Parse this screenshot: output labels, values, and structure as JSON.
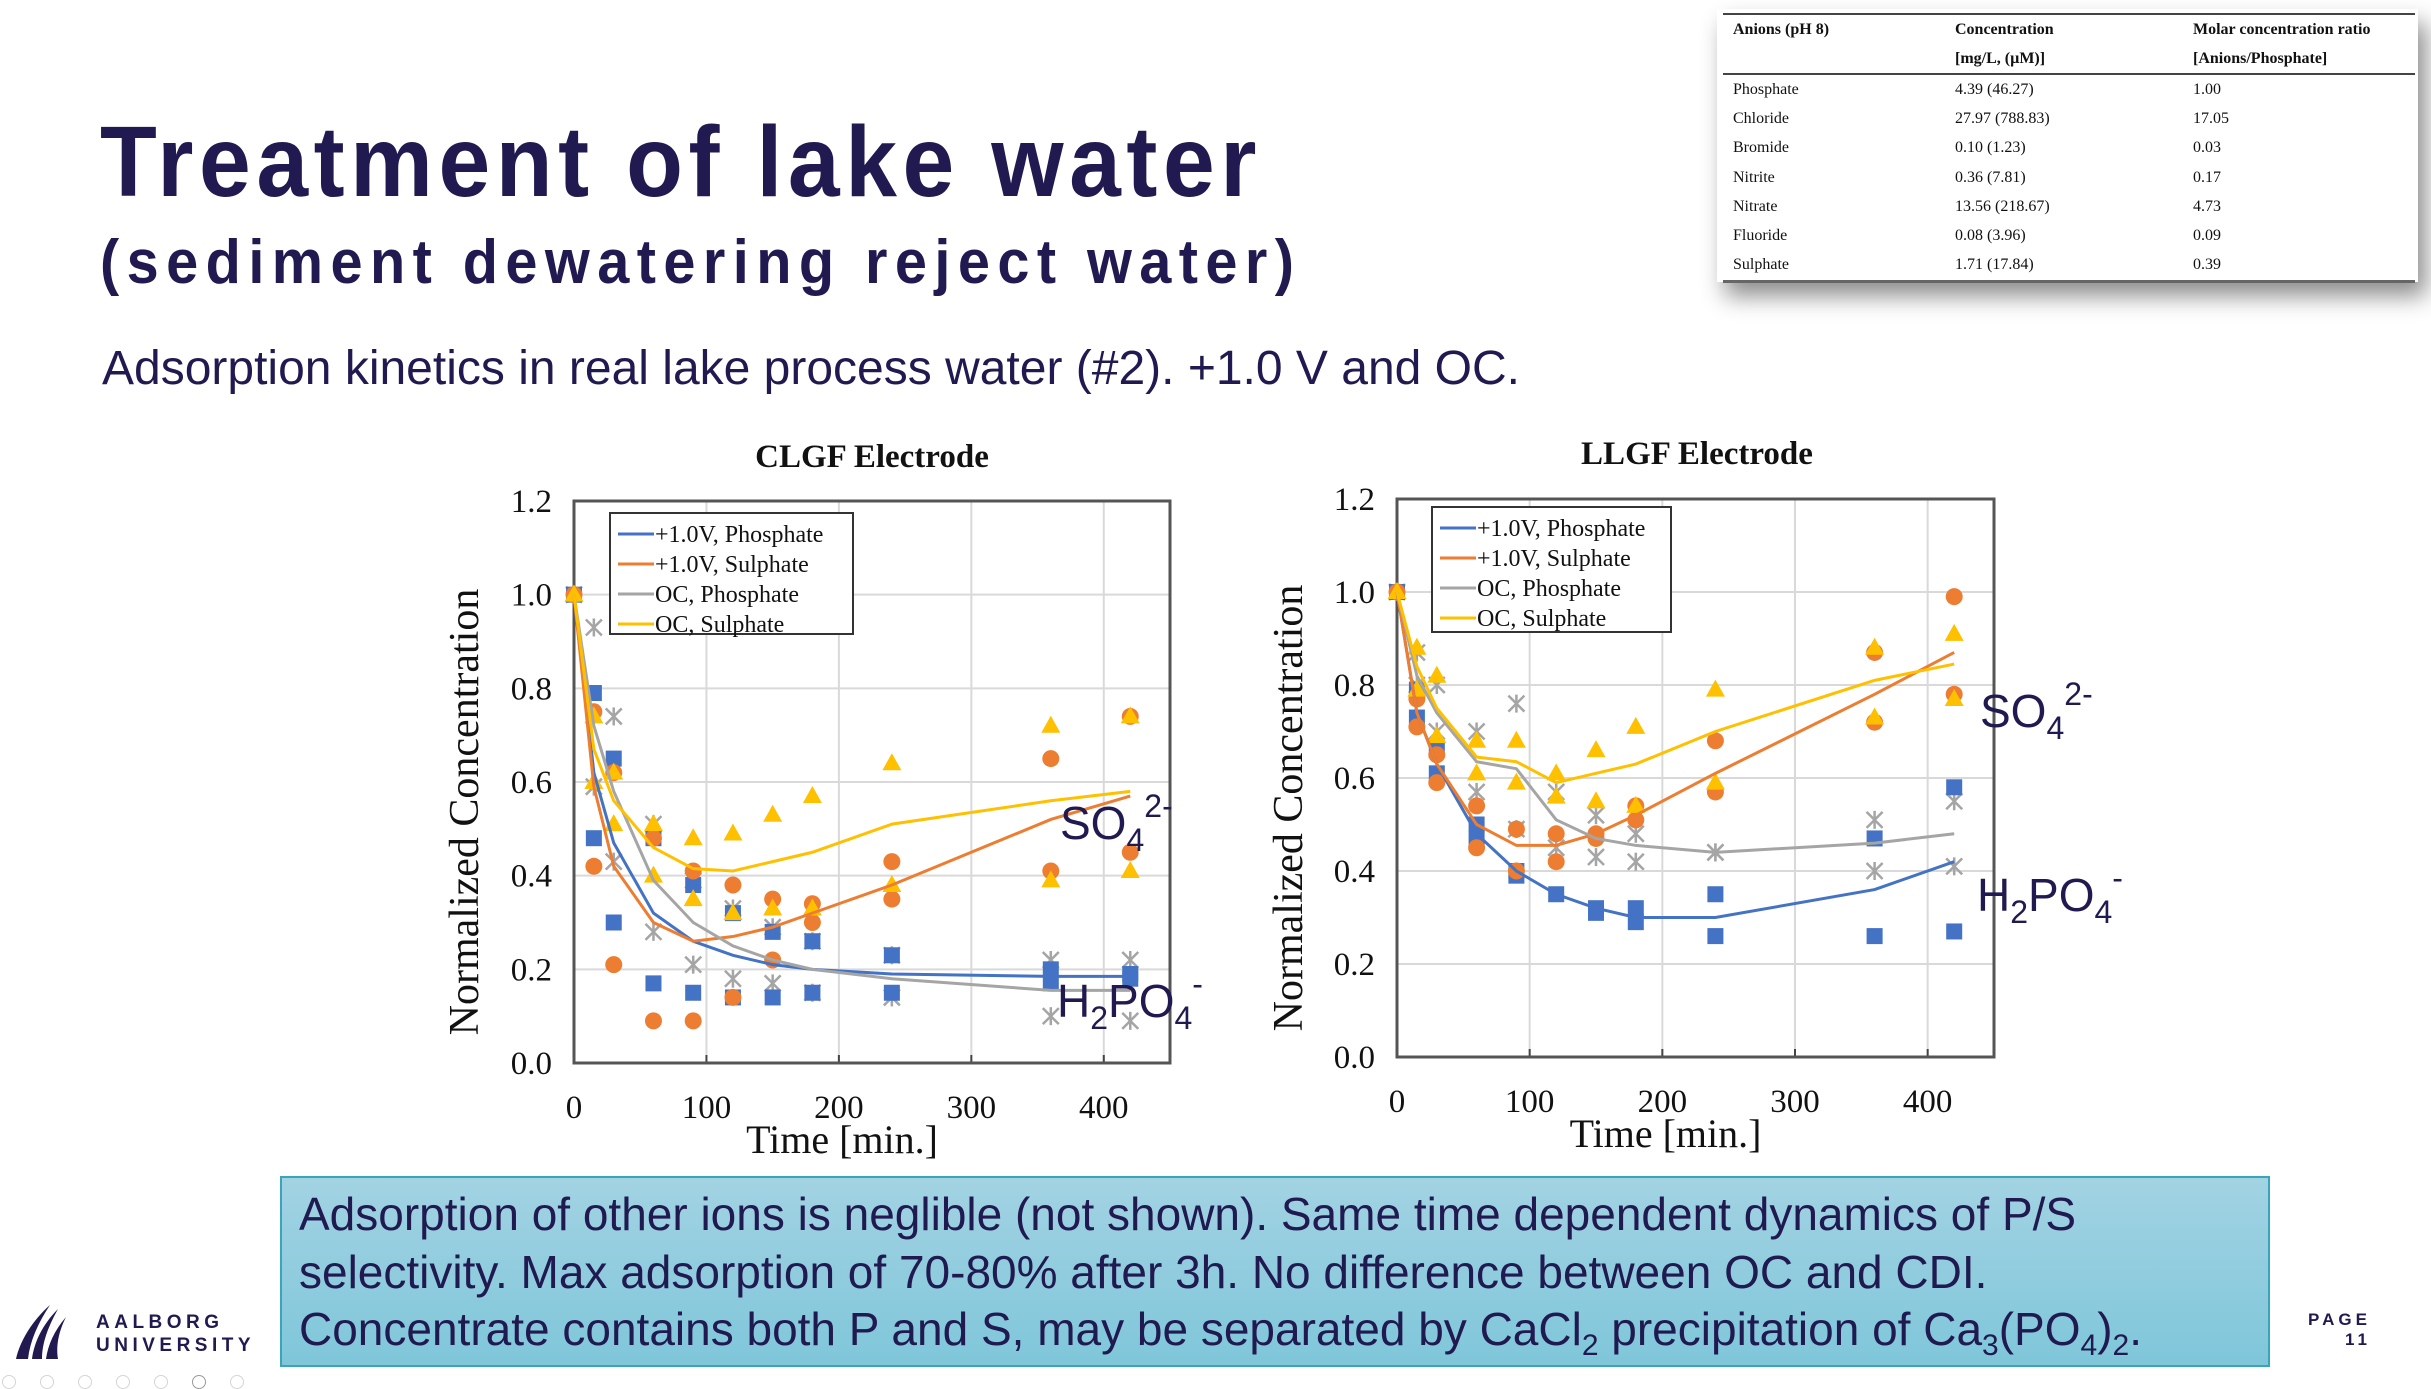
{
  "slide": {
    "title": "Treatment of lake water",
    "subtitle": "(sediment dewatering reject water)",
    "lead": "Adsorption kinetics in real lake process water (#2). +1.0 V and OC.",
    "caption": {
      "line1": "Adsorption of other ions is neglible (not shown). Same time dependent dynamics of P/S",
      "line2": "selectivity. Max adsorption of 70-80% after 3h. No difference between OC and CDI.",
      "line3_pre": "Concentrate contains both P and S, may be separated by CaCl",
      "line3_sub1": "2",
      "line3_mid": " precipitation of Ca",
      "line3_sub2": "3",
      "line3_mid2": "(PO",
      "line3_sub3": "4",
      "line3_mid3": ")",
      "line3_sub4": "2",
      "line3_end": "."
    },
    "logo": {
      "line1": "AALBORG",
      "line2": "UNIVERSITY",
      "icon": "aau-logo-icon"
    },
    "page": {
      "label": "PAGE",
      "number": "11"
    },
    "nav_dots": {
      "count": 7,
      "active_index": 5
    },
    "colors": {
      "text": "#201a50",
      "caption_bg": "#8fcde0",
      "caption_border": "#3aa4b8"
    }
  },
  "table": {
    "headers": [
      [
        "Anions (pH 8)",
        "Concentration",
        "Molar concentration ratio"
      ],
      [
        "",
        "[mg/L, (µM)]",
        "[Anions/Phosphate]"
      ]
    ],
    "rows": [
      [
        "Phosphate",
        "4.39 (46.27)",
        "1.00"
      ],
      [
        "Chloride",
        "27.97 (788.83)",
        "17.05"
      ],
      [
        "Bromide",
        "0.10 (1.23)",
        "0.03"
      ],
      [
        "Nitrite",
        "0.36 (7.81)",
        "0.17"
      ],
      [
        "Nitrate",
        "13.56 (218.67)",
        "4.73"
      ],
      [
        "Fluoride",
        "0.08 (3.96)",
        "0.09"
      ],
      [
        "Sulphate",
        "1.71 (17.84)",
        "0.39"
      ]
    ]
  },
  "chart_data": [
    {
      "type": "scatter",
      "title": "CLGF Electrode",
      "xlabel": "Time [min.]",
      "ylabel": "Normalized Concentration",
      "xlim": [
        0,
        450
      ],
      "ylim": [
        0,
        1.2
      ],
      "xticks": [
        0,
        100,
        200,
        300,
        400
      ],
      "yticks": [
        0.0,
        0.2,
        0.4,
        0.6,
        0.8,
        1.0,
        1.2
      ],
      "grid": true,
      "legend": "top-left",
      "annotations": [
        {
          "text": "SO",
          "sub": "4",
          "sup": "2-",
          "near": "sulphate curves"
        },
        {
          "text": "H",
          "sub": "2",
          "mid": "PO",
          "sub2": "4",
          "sup": "-",
          "near": "phosphate curves"
        }
      ],
      "series": [
        {
          "name": "+1.0V, Phosphate",
          "color": "#4472c4",
          "marker": "square",
          "line": {
            "x": [
              0,
              15,
              30,
              60,
              90,
              120,
              150,
              180,
              240,
              360,
              420
            ],
            "y": [
              1.0,
              0.62,
              0.47,
              0.32,
              0.26,
              0.23,
              0.21,
              0.2,
              0.19,
              0.185,
              0.185
            ]
          },
          "points": {
            "x": [
              0,
              15,
              15,
              30,
              30,
              60,
              60,
              90,
              90,
              120,
              120,
              150,
              150,
              180,
              180,
              240,
              240,
              360,
              360,
              420,
              420
            ],
            "y": [
              1.0,
              0.79,
              0.48,
              0.65,
              0.3,
              0.48,
              0.17,
              0.38,
              0.15,
              0.32,
              0.14,
              0.28,
              0.14,
              0.26,
              0.15,
              0.23,
              0.15,
              0.2,
              0.17,
              0.19,
              0.18
            ]
          }
        },
        {
          "name": "+1.0V, Sulphate",
          "color": "#ed7d31",
          "marker": "circle",
          "line": {
            "x": [
              0,
              15,
              30,
              60,
              90,
              120,
              150,
              180,
              240,
              360,
              420
            ],
            "y": [
              1.0,
              0.59,
              0.42,
              0.3,
              0.26,
              0.27,
              0.29,
              0.32,
              0.38,
              0.52,
              0.57
            ]
          },
          "points": {
            "x": [
              0,
              15,
              15,
              30,
              30,
              60,
              60,
              90,
              90,
              120,
              120,
              150,
              150,
              180,
              180,
              240,
              240,
              360,
              360,
              420,
              420
            ],
            "y": [
              1.0,
              0.75,
              0.42,
              0.62,
              0.21,
              0.48,
              0.09,
              0.41,
              0.09,
              0.38,
              0.14,
              0.35,
              0.22,
              0.34,
              0.3,
              0.43,
              0.35,
              0.65,
              0.41,
              0.74,
              0.45
            ]
          }
        },
        {
          "name": "OC, Phosphate",
          "color": "#a5a5a5",
          "marker": "asterisk",
          "line": {
            "x": [
              0,
              15,
              30,
              60,
              90,
              120,
              150,
              180,
              240,
              360,
              420
            ],
            "y": [
              1.0,
              0.72,
              0.58,
              0.39,
              0.3,
              0.25,
              0.22,
              0.2,
              0.18,
              0.155,
              0.155
            ]
          },
          "points": {
            "x": [
              0,
              15,
              15,
              30,
              30,
              60,
              60,
              90,
              90,
              120,
              120,
              150,
              150,
              180,
              180,
              240,
              240,
              360,
              360,
              420,
              420
            ],
            "y": [
              1.0,
              0.93,
              0.59,
              0.74,
              0.43,
              0.51,
              0.28,
              0.39,
              0.21,
              0.33,
              0.18,
              0.29,
              0.17,
              0.26,
              0.15,
              0.23,
              0.14,
              0.22,
              0.1,
              0.22,
              0.09
            ]
          }
        },
        {
          "name": "OC, Sulphate",
          "color": "#ffc000",
          "marker": "triangle",
          "line": {
            "x": [
              0,
              15,
              30,
              60,
              90,
              120,
              150,
              180,
              240,
              360,
              420
            ],
            "y": [
              1.0,
              0.67,
              0.56,
              0.46,
              0.415,
              0.41,
              0.43,
              0.45,
              0.51,
              0.56,
              0.58
            ]
          },
          "points": {
            "x": [
              0,
              15,
              15,
              30,
              30,
              60,
              60,
              90,
              90,
              120,
              120,
              150,
              150,
              180,
              180,
              240,
              240,
              360,
              360,
              420,
              420
            ],
            "y": [
              1.0,
              0.74,
              0.6,
              0.62,
              0.51,
              0.51,
              0.4,
              0.48,
              0.35,
              0.49,
              0.32,
              0.53,
              0.33,
              0.57,
              0.33,
              0.64,
              0.38,
              0.72,
              0.39,
              0.74,
              0.41
            ]
          }
        }
      ]
    },
    {
      "type": "scatter",
      "title": "LLGF Electrode",
      "xlabel": "Time [min.]",
      "ylabel": "Normalized Concentration",
      "xlim": [
        0,
        450
      ],
      "ylim": [
        0,
        1.2
      ],
      "xticks": [
        0,
        100,
        200,
        300,
        400
      ],
      "yticks": [
        0.0,
        0.2,
        0.4,
        0.6,
        0.8,
        1.0,
        1.2
      ],
      "grid": true,
      "legend": "top-left",
      "annotations": [
        {
          "text": "SO",
          "sub": "4",
          "sup": "2-",
          "near": "sulphate curves"
        },
        {
          "text": "H",
          "sub": "2",
          "mid": "PO",
          "sub2": "4",
          "sup": "-",
          "near": "phosphate curves"
        }
      ],
      "series": [
        {
          "name": "+1.0V, Phosphate",
          "color": "#4472c4",
          "marker": "square",
          "line": {
            "x": [
              0,
              15,
              30,
              60,
              90,
              120,
              150,
              180,
              240,
              360,
              420
            ],
            "y": [
              1.0,
              0.74,
              0.63,
              0.48,
              0.4,
              0.35,
              0.32,
              0.3,
              0.3,
              0.36,
              0.42
            ]
          },
          "points": {
            "x": [
              0,
              15,
              15,
              30,
              30,
              60,
              60,
              90,
              90,
              120,
              150,
              150,
              180,
              180,
              240,
              240,
              360,
              360,
              420,
              420
            ],
            "y": [
              1.0,
              0.79,
              0.73,
              0.66,
              0.61,
              0.5,
              0.47,
              0.4,
              0.39,
              0.35,
              0.32,
              0.31,
              0.32,
              0.29,
              0.35,
              0.26,
              0.47,
              0.26,
              0.58,
              0.27
            ]
          }
        },
        {
          "name": "+1.0V, Sulphate",
          "color": "#ed7d31",
          "marker": "circle",
          "line": {
            "x": [
              0,
              15,
              30,
              60,
              90,
              120,
              150,
              180,
              240,
              360,
              420
            ],
            "y": [
              1.0,
              0.74,
              0.63,
              0.5,
              0.455,
              0.455,
              0.48,
              0.52,
              0.61,
              0.78,
              0.87
            ]
          },
          "points": {
            "x": [
              0,
              15,
              15,
              30,
              30,
              60,
              60,
              90,
              90,
              120,
              120,
              150,
              150,
              180,
              180,
              240,
              240,
              360,
              360,
              420,
              420
            ],
            "y": [
              1.0,
              0.77,
              0.71,
              0.65,
              0.59,
              0.54,
              0.45,
              0.49,
              0.4,
              0.48,
              0.42,
              0.48,
              0.47,
              0.54,
              0.51,
              0.68,
              0.57,
              0.87,
              0.72,
              0.99,
              0.78
            ]
          }
        },
        {
          "name": "OC, Phosphate",
          "color": "#a5a5a5",
          "marker": "asterisk",
          "line": {
            "x": [
              0,
              15,
              30,
              60,
              90,
              120,
              150,
              180,
              240,
              360,
              420
            ],
            "y": [
              1.0,
              0.82,
              0.74,
              0.635,
              0.62,
              0.51,
              0.47,
              0.455,
              0.44,
              0.46,
              0.48
            ]
          },
          "points": {
            "x": [
              0,
              15,
              15,
              30,
              30,
              60,
              60,
              90,
              90,
              120,
              120,
              150,
              150,
              180,
              180,
              240,
              240,
              360,
              360,
              420,
              420
            ],
            "y": [
              1.0,
              0.87,
              0.8,
              0.8,
              0.7,
              0.7,
              0.57,
              0.76,
              0.49,
              0.57,
              0.45,
              0.52,
              0.43,
              0.48,
              0.42,
              0.44,
              0.44,
              0.51,
              0.4,
              0.55,
              0.41
            ]
          }
        },
        {
          "name": "OC, Sulphate",
          "color": "#ffc000",
          "marker": "triangle",
          "line": {
            "x": [
              0,
              15,
              30,
              60,
              90,
              120,
              150,
              180,
              240,
              360,
              420
            ],
            "y": [
              1.0,
              0.84,
              0.75,
              0.645,
              0.635,
              0.59,
              0.61,
              0.63,
              0.7,
              0.81,
              0.845
            ]
          },
          "points": {
            "x": [
              0,
              15,
              15,
              30,
              30,
              60,
              60,
              90,
              90,
              120,
              120,
              150,
              150,
              180,
              180,
              240,
              240,
              360,
              360,
              420,
              420
            ],
            "y": [
              1.0,
              0.88,
              0.79,
              0.82,
              0.69,
              0.68,
              0.61,
              0.68,
              0.59,
              0.61,
              0.56,
              0.66,
              0.55,
              0.71,
              0.54,
              0.79,
              0.59,
              0.88,
              0.73,
              0.91,
              0.77
            ]
          }
        }
      ]
    }
  ]
}
